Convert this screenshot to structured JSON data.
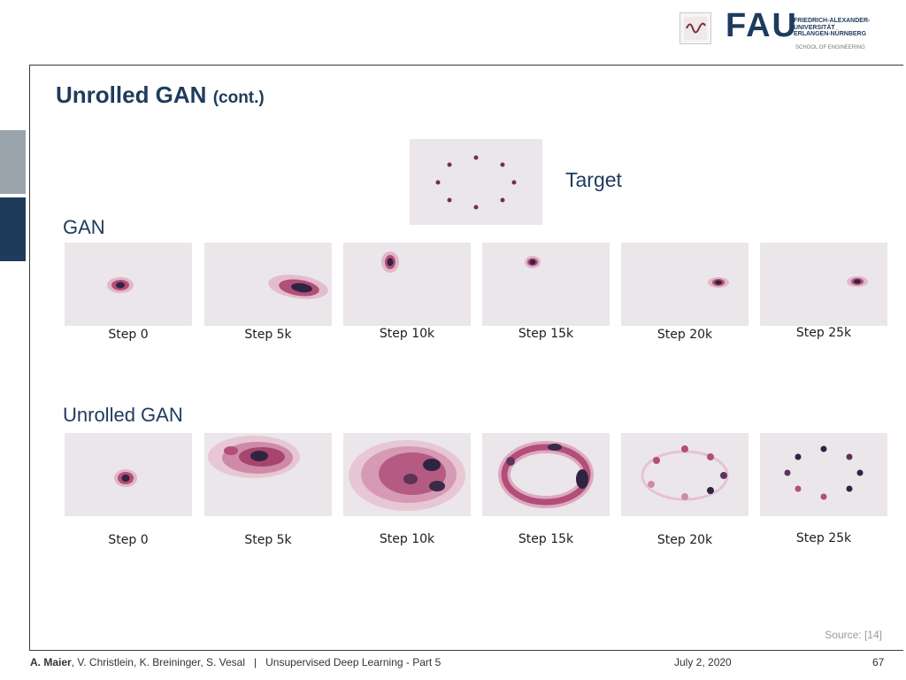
{
  "header": {
    "logo_main": "FAU",
    "logo_lines": [
      "FRIEDRICH-ALEXANDER-",
      "UNIVERSITÄT",
      "ERLANGEN-NÜRNBERG"
    ],
    "logo_school": "SCHOOL OF ENGINEERING"
  },
  "slide": {
    "title": "Unrolled GAN",
    "title_suffix": "(cont.)",
    "target_label": "Target",
    "gan_label": "GAN",
    "unrolled_label": "Unrolled GAN",
    "gan_steps": [
      "Step 0",
      "Step 5k",
      "Step 10k",
      "Step 15k",
      "Step 20k",
      "Step 25k"
    ],
    "unrolled_steps": [
      "Step 0",
      "Step 5k",
      "Step 10k",
      "Step 15k",
      "Step 20k",
      "Step 25k"
    ],
    "source": "Source: [14]"
  },
  "footer": {
    "author_lead": "A. Maier",
    "authors_rest": ", V. Christlein, K. Breininger, S. Vesal",
    "separator": "|",
    "course": "Unsupervised Deep Learning - Part 5",
    "date": "July 2, 2020",
    "page": "67"
  },
  "colors": {
    "accent": "#1f3b5c",
    "panel_bg": "#ebe6ea",
    "density_dark": "#2a2340",
    "density_mid": "#a0406a",
    "density_light": "#d9a3bc"
  }
}
